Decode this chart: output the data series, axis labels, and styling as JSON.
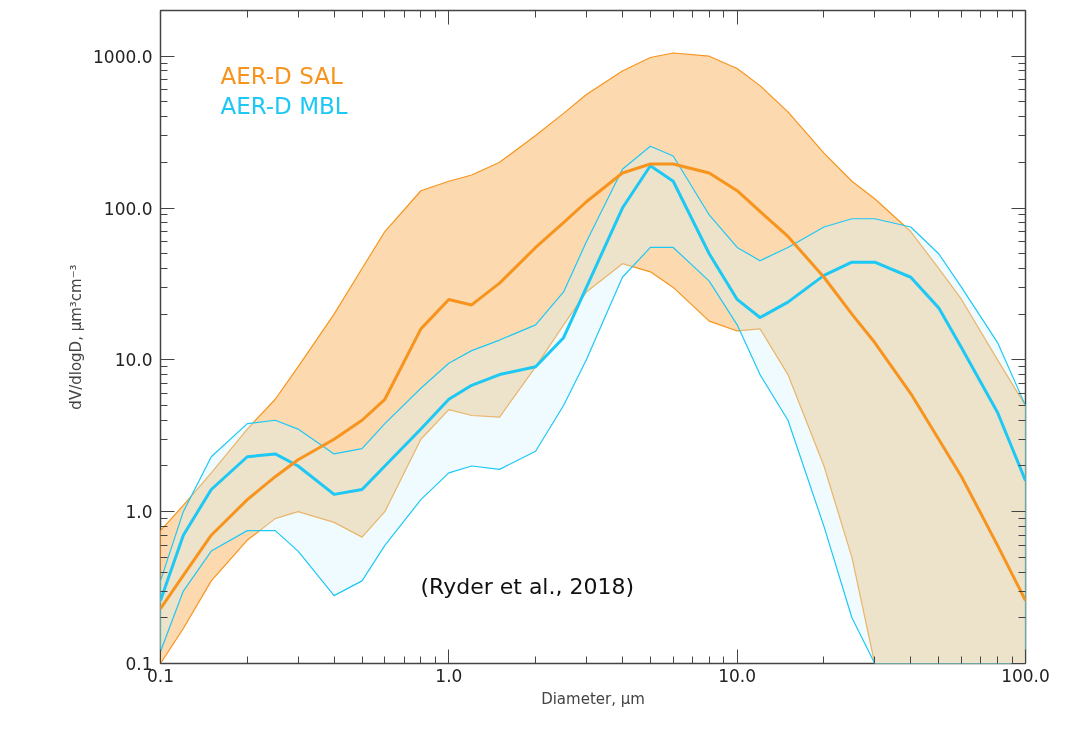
{
  "chart_data": {
    "type": "line",
    "xlabel": "Diameter, μm",
    "ylabel": "dV/dlogD, μm³cm⁻³",
    "log": "xy",
    "xlim": [
      0.1,
      100
    ],
    "ylim": [
      0.1,
      2000
    ],
    "xticks": [
      0.1,
      {
        "value": 1,
        "label": "1.0"
      },
      {
        "value": 10,
        "label": "10.0"
      },
      {
        "value": 100,
        "label": "100.0"
      }
    ],
    "yticks": [
      0.1,
      {
        "value": 1,
        "label": "1.0"
      },
      {
        "value": 10,
        "label": "10.0"
      },
      {
        "value": 100,
        "label": "100.0"
      },
      {
        "value": 1000,
        "label": "1000.0"
      }
    ],
    "grid": false,
    "annotations": [
      "(Ryder et al., 2018)"
    ],
    "x": [
      0.1,
      0.12,
      0.15,
      0.2,
      0.25,
      0.3,
      0.4,
      0.5,
      0.6,
      0.8,
      1.0,
      1.2,
      1.5,
      2,
      2.5,
      3,
      4,
      5,
      6,
      8,
      10,
      12,
      15,
      20,
      25,
      30,
      40,
      50,
      60,
      80,
      100
    ],
    "series": [
      {
        "name": "AER-D MBL",
        "color": "#1ec8f5",
        "values": [
          0.26,
          0.7,
          1.4,
          2.3,
          2.4,
          2.0,
          1.3,
          1.4,
          2.0,
          3.5,
          5.5,
          6.8,
          8.0,
          9.0,
          14,
          30,
          100,
          190,
          150,
          50,
          25,
          19,
          24,
          36,
          44,
          44,
          35,
          22,
          12,
          4.5,
          1.6
        ],
        "upper": [
          0.35,
          1.0,
          2.3,
          3.8,
          4.0,
          3.5,
          2.4,
          2.6,
          3.8,
          6.5,
          9.5,
          11.5,
          13.5,
          17,
          28,
          60,
          180,
          255,
          220,
          90,
          55,
          45,
          55,
          75,
          85,
          85,
          75,
          50,
          30,
          13,
          5
        ],
        "lower": [
          0.12,
          0.3,
          0.55,
          0.75,
          0.75,
          0.55,
          0.28,
          0.35,
          0.6,
          1.2,
          1.8,
          2.0,
          1.9,
          2.5,
          5,
          10,
          35,
          55,
          55,
          33,
          17,
          8,
          4,
          0.8,
          0.2,
          0.1,
          0.1,
          0.1,
          0.1,
          0.1,
          0.1
        ]
      },
      {
        "name": "AER-D SAL",
        "color": "#f7941d",
        "values": [
          0.23,
          0.38,
          0.7,
          1.2,
          1.7,
          2.2,
          3.0,
          4.0,
          5.5,
          16,
          25,
          23,
          32,
          55,
          80,
          110,
          170,
          195,
          195,
          170,
          130,
          95,
          65,
          35,
          20,
          13,
          6,
          3,
          1.7,
          0.6,
          0.26
        ],
        "upper": [
          0.75,
          1.1,
          1.8,
          3.5,
          5.5,
          9,
          20,
          40,
          70,
          130,
          150,
          165,
          200,
          300,
          420,
          560,
          800,
          980,
          1050,
          1000,
          830,
          640,
          430,
          230,
          150,
          115,
          70,
          40,
          25,
          10,
          5
        ],
        "lower": [
          0.1,
          0.17,
          0.35,
          0.65,
          0.9,
          1.0,
          0.85,
          0.68,
          1.0,
          3.0,
          4.7,
          4.3,
          4.2,
          9,
          17,
          28,
          43,
          38,
          30,
          18,
          15.5,
          16,
          8,
          2.0,
          0.5,
          0.1,
          0.1,
          0.1,
          0.1,
          0.1,
          0.1
        ]
      }
    ]
  }
}
